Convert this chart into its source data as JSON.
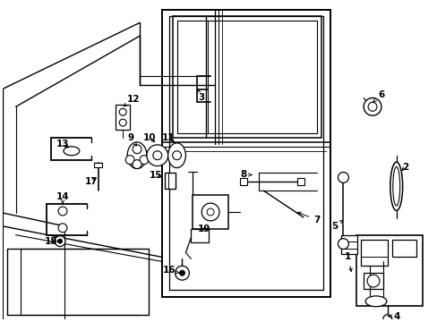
{
  "bg_color": "#ffffff",
  "line_color": "#000000",
  "figsize": [
    4.89,
    3.6
  ],
  "dpi": 100,
  "parts": {
    "door_outline": {
      "x": [
        0.3,
        0.3,
        0.78,
        0.78
      ],
      "y": [
        0.03,
        0.97,
        0.97,
        0.03
      ]
    }
  }
}
